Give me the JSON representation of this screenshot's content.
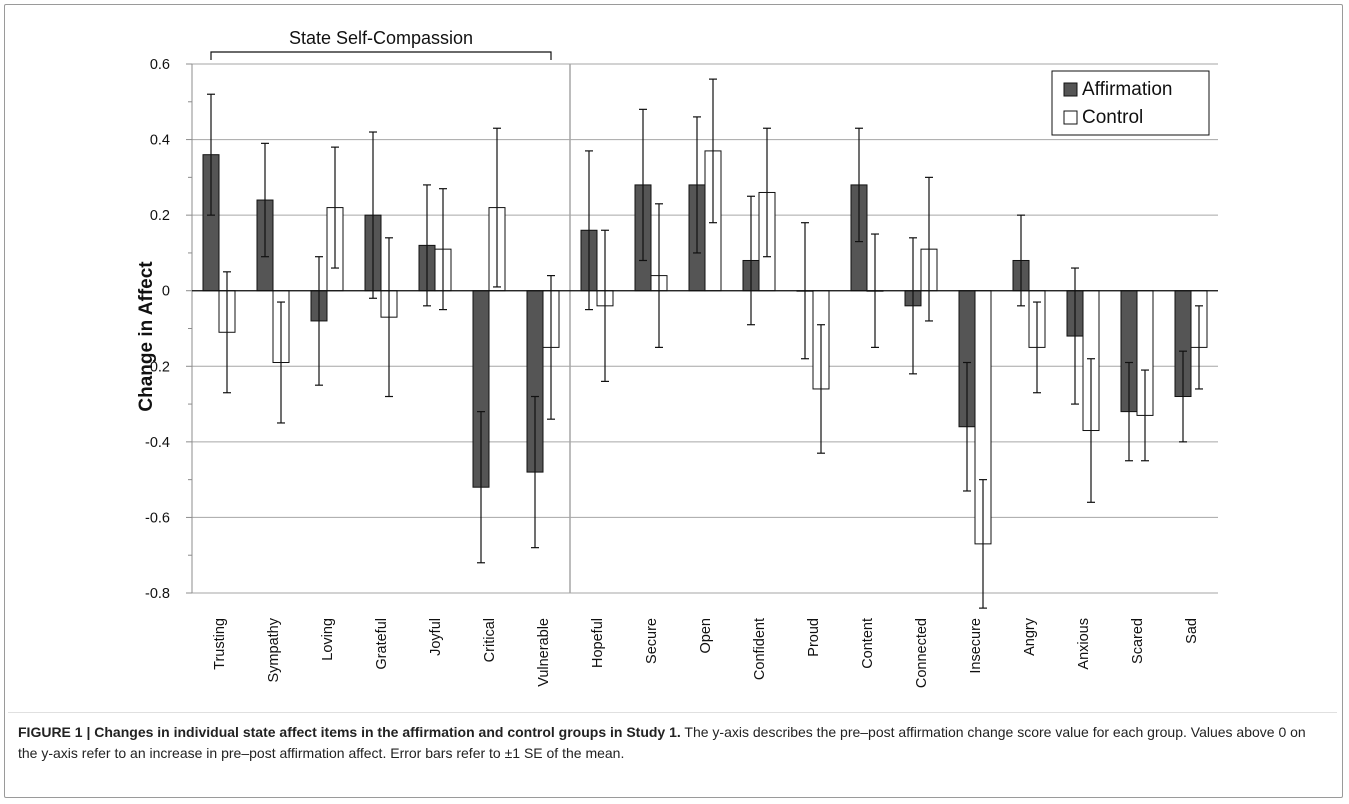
{
  "chart_data": {
    "type": "bar",
    "title": "",
    "xlabel": "",
    "ylabel": "Change in Affect",
    "ylim": [
      -0.8,
      0.6
    ],
    "yticks": [
      "0.6",
      "0.4",
      "0.2",
      "0",
      "-0.2",
      "-0.4",
      "-0.6",
      "-0.8"
    ],
    "grid": true,
    "legend_position": "top-right",
    "group_label": "State Self-Compassion",
    "categories": [
      "Trusting",
      "Sympathy",
      "Loving",
      "Grateful",
      "Joyful",
      "Critical",
      "Vulnerable",
      "Hopeful",
      "Secure",
      "Open",
      "Confident",
      "Proud",
      "Content",
      "Connected",
      "Insecure",
      "Angry",
      "Anxious",
      "Scared",
      "Sad"
    ],
    "series": [
      {
        "name": "Affirmation",
        "color": "#555555",
        "values": [
          0.36,
          0.24,
          -0.08,
          0.2,
          0.12,
          -0.52,
          -0.48,
          0.16,
          0.28,
          0.28,
          0.08,
          0.0,
          0.28,
          -0.04,
          -0.36,
          0.08,
          -0.12,
          -0.32,
          -0.28
        ],
        "error": [
          0.16,
          0.15,
          0.17,
          0.22,
          0.16,
          0.2,
          0.2,
          0.21,
          0.2,
          0.18,
          0.17,
          0.18,
          0.15,
          0.18,
          0.17,
          0.12,
          0.18,
          0.13,
          0.12
        ]
      },
      {
        "name": "Control",
        "color": "#ffffff",
        "values": [
          -0.11,
          -0.19,
          0.22,
          -0.07,
          0.11,
          0.22,
          -0.15,
          -0.04,
          0.04,
          0.37,
          0.26,
          -0.26,
          0.0,
          0.11,
          -0.67,
          -0.15,
          -0.37,
          -0.33,
          -0.15
        ],
        "error": [
          0.16,
          0.16,
          0.16,
          0.21,
          0.16,
          0.21,
          0.19,
          0.2,
          0.19,
          0.19,
          0.17,
          0.17,
          0.15,
          0.19,
          0.17,
          0.12,
          0.19,
          0.12,
          0.11
        ]
      }
    ]
  },
  "caption": {
    "label": "FIGURE 1 | Changes in individual state affect items in the affirmation and control groups in Study 1.",
    "text": " The y-axis describes the pre–post affirmation change score value for each group. Values above 0 on the y-axis refer to an increase in pre–post affirmation affect. Error bars refer to ±1 SE of the mean."
  }
}
